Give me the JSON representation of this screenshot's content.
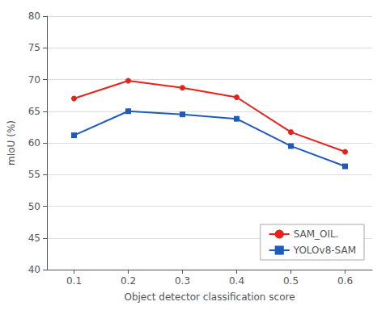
{
  "chart_data": {
    "type": "line",
    "xlabel": "Object detector classification score",
    "ylabel": "mIoU (%)",
    "x": [
      0.1,
      0.2,
      0.3,
      0.4,
      0.5,
      0.6
    ],
    "series": [
      {
        "name": "SAM_OIL.",
        "color": "#e8221a",
        "marker": "circle",
        "values": [
          67.0,
          69.8,
          68.7,
          67.2,
          61.7,
          58.6
        ]
      },
      {
        "name": "YOLOv8-SAM",
        "color": "#1f5bbf",
        "marker": "square",
        "values": [
          61.2,
          65.0,
          64.5,
          63.8,
          59.5,
          56.3
        ]
      }
    ],
    "xlim": [
      0.05,
      0.65
    ],
    "ylim": [
      40,
      80
    ],
    "xticks": [
      0.1,
      0.2,
      0.3,
      0.4,
      0.5,
      0.6
    ],
    "yticks": [
      40,
      45,
      50,
      55,
      60,
      65,
      70,
      75,
      80
    ],
    "grid": true,
    "legend": "lower right"
  }
}
